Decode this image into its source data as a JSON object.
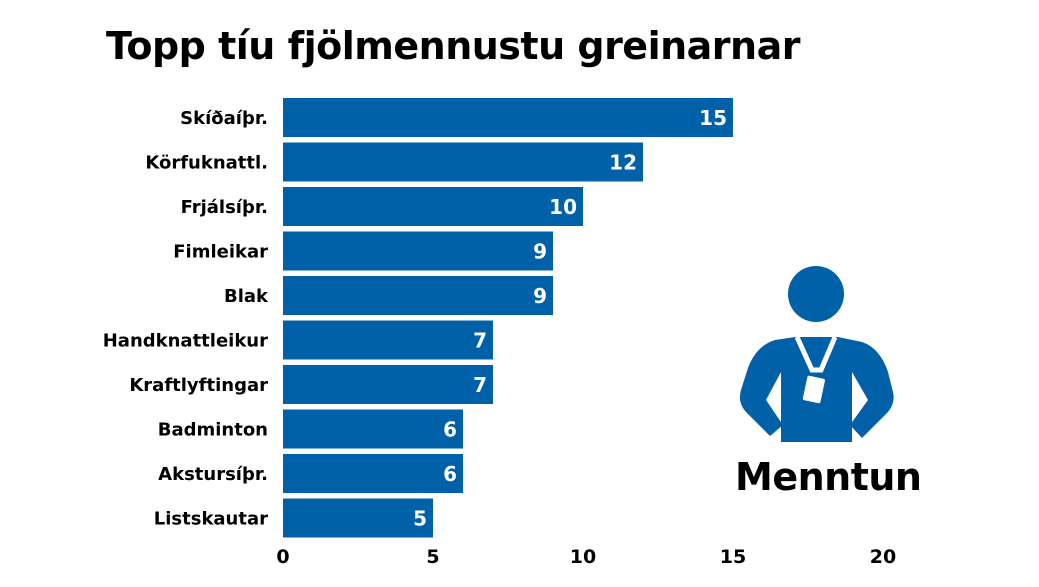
{
  "chart_data": {
    "type": "bar",
    "orientation": "horizontal",
    "title": "Topp tíu fjölmennustu greinarnar",
    "categories": [
      "Skíðaíþr.",
      "Körfuknattl.",
      "Frjálsíþr.",
      "Fimleikar",
      "Blak",
      "Handknattleikur",
      "Kraftlyftingar",
      "Badminton",
      "Akstursíþr.",
      "Listskautar"
    ],
    "values": [
      15,
      12,
      10,
      9,
      9,
      7,
      7,
      6,
      6,
      5
    ],
    "xlabel": "",
    "ylabel": "",
    "xlim": [
      0,
      20
    ],
    "xticks": [
      "0",
      "5",
      "10",
      "15",
      "20"
    ],
    "grid": false,
    "bar_color": "#0060a8"
  },
  "figure": {
    "icon": "person-with-lanyard-icon",
    "caption": "Menntun"
  }
}
